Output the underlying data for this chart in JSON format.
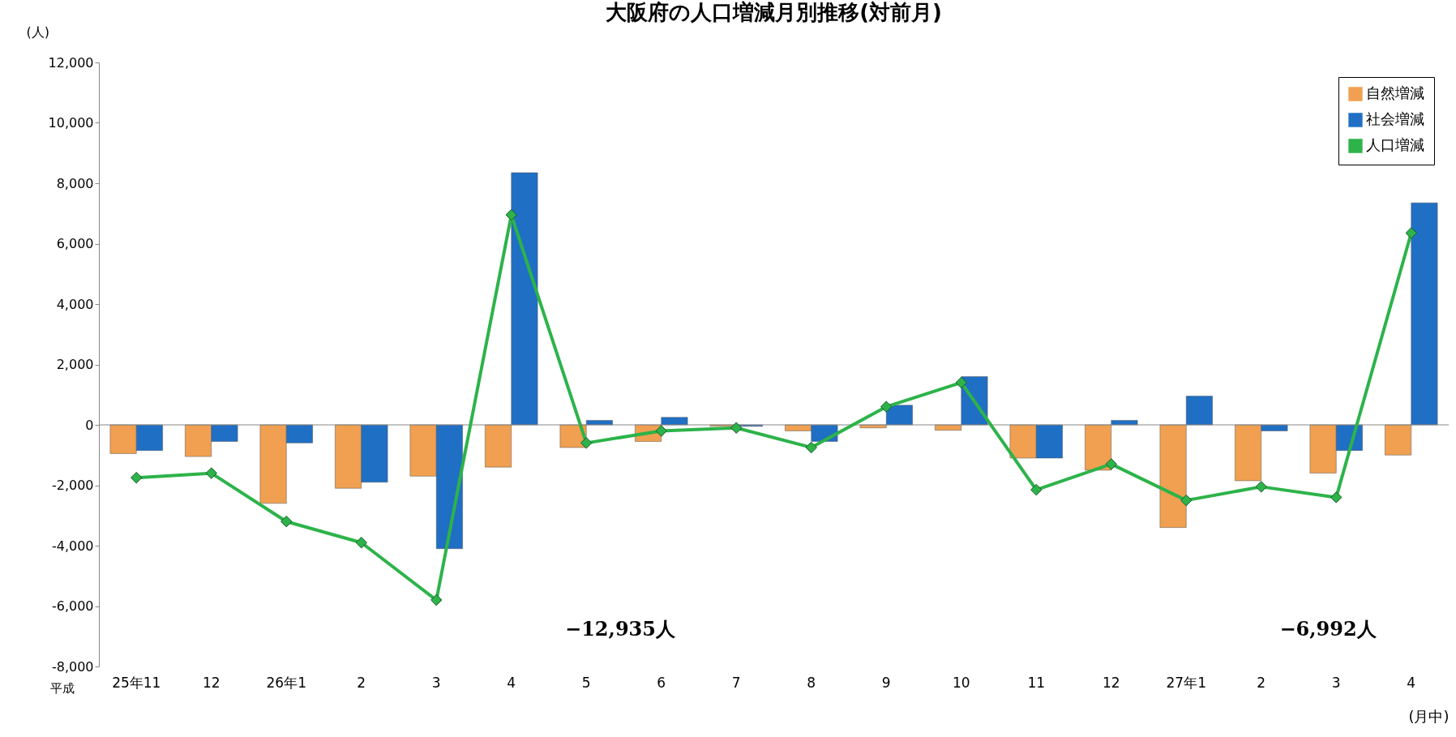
{
  "chart_data": {
    "type": "bar",
    "title": "大阪府の人口増減月別推移(対前月)",
    "ylabel": "(人)",
    "xlabel": "(月中)",
    "categories": [
      "25年11",
      "12",
      "26年1",
      "2",
      "3",
      "4",
      "5",
      "6",
      "7",
      "8",
      "9",
      "10",
      "11",
      "12",
      "27年1",
      "2",
      "3",
      "4"
    ],
    "series": [
      {
        "name": "自然増減",
        "type": "bar",
        "color": "#f0a050",
        "values": [
          -950,
          -1050,
          -2600,
          -2100,
          -1700,
          -1400,
          -750,
          -550,
          -50,
          -200,
          -100,
          -180,
          -1100,
          -1500,
          -3400,
          -1850,
          -1600,
          -1000
        ]
      },
      {
        "name": "社会増減",
        "type": "bar",
        "color": "#1f6fc5",
        "values": [
          -850,
          -550,
          -600,
          -1900,
          -4100,
          8350,
          150,
          250,
          -50,
          -550,
          650,
          1600,
          -1100,
          150,
          950,
          -200,
          -850,
          7350
        ]
      },
      {
        "name": "人口増減",
        "type": "line",
        "color": "#2db34a",
        "marker": "diamond",
        "values": [
          -1750,
          -1600,
          -3200,
          -3900,
          -5800,
          6950,
          -600,
          -200,
          -100,
          -750,
          600,
          1400,
          -2150,
          -1300,
          -2500,
          -2050,
          -2400,
          6350
        ]
      }
    ],
    "ylim": [
      -8000,
      12000
    ],
    "yticks": [
      {
        "value": -8000,
        "label": "-8,000"
      },
      {
        "value": -6000,
        "label": "-6,000"
      },
      {
        "value": -4000,
        "label": "-4,000"
      },
      {
        "value": -2000,
        "label": "-2,000"
      },
      {
        "value": 0,
        "label": "0"
      },
      {
        "value": 2000,
        "label": "2,000"
      },
      {
        "value": 4000,
        "label": "4,000"
      },
      {
        "value": 6000,
        "label": "6,000"
      },
      {
        "value": 8000,
        "label": "8,000"
      },
      {
        "value": 10000,
        "label": "10,000"
      },
      {
        "value": 12000,
        "label": "12,000"
      }
    ],
    "grid": false,
    "ref_lines": [
      {
        "axis": "y",
        "value": 0,
        "color": "#888888"
      }
    ],
    "legend": "top right",
    "annotations": [
      "平成",
      "−12,935人",
      "−6,992人"
    ]
  }
}
